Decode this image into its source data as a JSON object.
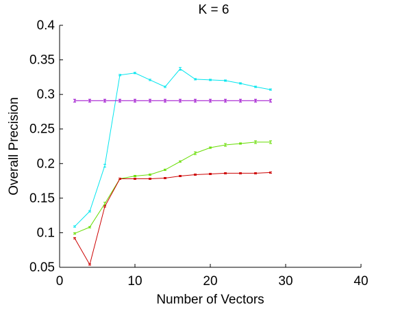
{
  "chart_data": {
    "type": "line",
    "title": "K = 6",
    "xlabel": "Number of Vectors",
    "ylabel": "Overall Precision",
    "xlim": [
      0,
      40
    ],
    "ylim": [
      0.05,
      0.4
    ],
    "xticks": [
      0,
      10,
      20,
      30,
      40
    ],
    "xtick_labels": [
      "0",
      "10",
      "20",
      "30",
      "40"
    ],
    "yticks": [
      0.05,
      0.1,
      0.15,
      0.2,
      0.25,
      0.3,
      0.35,
      0.4
    ],
    "ytick_labels": [
      "0.05",
      "0.1",
      "0.15",
      "0.2",
      "0.25",
      "0.3",
      "0.35",
      "0.4"
    ],
    "grid": false,
    "box": "left-bottom axes only",
    "series": [
      {
        "color": "#00e5ee",
        "x": [
          2,
          4,
          6,
          8,
          10,
          12,
          14,
          16,
          18,
          20,
          22,
          24,
          26,
          28
        ],
        "y": [
          0.109,
          0.131,
          0.197,
          0.328,
          0.331,
          0.321,
          0.311,
          0.337,
          0.322,
          0.321,
          0.32,
          0.316,
          0.311,
          0.307
        ],
        "err": [
          0.001,
          0.001,
          0.002,
          0.001,
          0.001,
          0.001,
          0.001,
          0.002,
          0.001,
          0.001,
          0.001,
          0.001,
          0.001,
          0.001
        ]
      },
      {
        "color": "#9900cc",
        "x": [
          2,
          4,
          6,
          8,
          10,
          12,
          14,
          16,
          18,
          20,
          22,
          24,
          26,
          28
        ],
        "y": [
          0.291,
          0.291,
          0.291,
          0.291,
          0.291,
          0.291,
          0.291,
          0.291,
          0.291,
          0.291,
          0.291,
          0.291,
          0.291,
          0.291
        ],
        "err": [
          0.002,
          0.002,
          0.002,
          0.002,
          0.002,
          0.002,
          0.002,
          0.002,
          0.002,
          0.002,
          0.002,
          0.002,
          0.002,
          0.002
        ]
      },
      {
        "color": "#66dd00",
        "x": [
          2,
          4,
          6,
          8,
          10,
          12,
          14,
          16,
          18,
          20,
          22,
          24,
          26,
          28
        ],
        "y": [
          0.099,
          0.108,
          0.142,
          0.178,
          0.182,
          0.184,
          0.191,
          0.203,
          0.215,
          0.223,
          0.227,
          0.229,
          0.231,
          0.231
        ],
        "err": [
          0.001,
          0.001,
          0.002,
          0.001,
          0.001,
          0.001,
          0.001,
          0.001,
          0.002,
          0.001,
          0.002,
          0.001,
          0.002,
          0.002
        ]
      },
      {
        "color": "#cc0000",
        "x": [
          2,
          4,
          6,
          8,
          10,
          12,
          14,
          16,
          18,
          20,
          22,
          24,
          26,
          28
        ],
        "y": [
          0.092,
          0.054,
          0.138,
          0.178,
          0.178,
          0.178,
          0.179,
          0.182,
          0.184,
          0.185,
          0.186,
          0.186,
          0.186,
          0.187
        ],
        "err": [
          0.001,
          0.001,
          0.001,
          0.001,
          0.001,
          0.001,
          0.001,
          0.001,
          0.001,
          0.001,
          0.001,
          0.001,
          0.001,
          0.001
        ]
      }
    ]
  }
}
